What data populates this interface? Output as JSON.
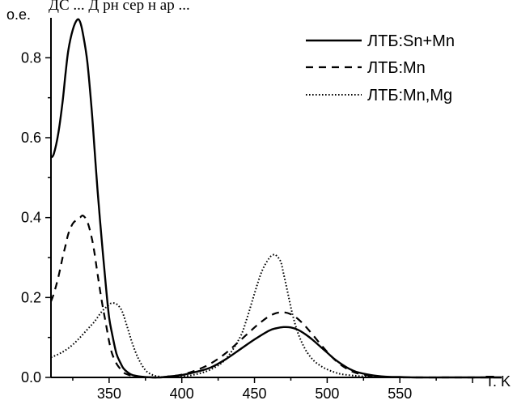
{
  "page": {
    "top_cut_text": "ДС  ... Д  рн  сер  н ар    ..."
  },
  "chart_data": {
    "type": "line",
    "title": "",
    "xlabel": "T. K",
    "ylabel": "о.е.",
    "xlim": [
      310,
      620
    ],
    "ylim": [
      0,
      0.9
    ],
    "grid": false,
    "legend_position": "top-right",
    "x_ticks": [
      350,
      400,
      450,
      500,
      550
    ],
    "x_tick_labels": [
      "350",
      "400",
      "450",
      "500",
      "550"
    ],
    "y_ticks": [
      0.0,
      0.2,
      0.4,
      0.6,
      0.8
    ],
    "y_tick_labels": [
      "0.0",
      "0.2",
      "0.4",
      "0.6",
      "0.8"
    ],
    "series": [
      {
        "name": "ЛТБ:Sn+Mn",
        "style": "solid",
        "x": [
          310,
          312,
          315,
          318,
          320,
          322,
          325,
          328,
          330,
          332,
          335,
          338,
          340,
          342,
          345,
          348,
          350,
          352,
          355,
          358,
          360,
          363,
          366,
          370,
          375,
          380,
          385,
          390,
          400,
          410,
          420,
          430,
          440,
          450,
          460,
          465,
          470,
          475,
          480,
          485,
          490,
          495,
          500,
          505,
          510,
          515,
          520,
          530,
          540,
          550,
          560,
          580,
          600,
          620
        ],
        "y": [
          0.55,
          0.56,
          0.61,
          0.69,
          0.76,
          0.82,
          0.87,
          0.895,
          0.89,
          0.86,
          0.79,
          0.67,
          0.57,
          0.47,
          0.34,
          0.22,
          0.15,
          0.11,
          0.06,
          0.035,
          0.022,
          0.012,
          0.006,
          0.003,
          0.001,
          0.0,
          0.0,
          0.002,
          0.006,
          0.014,
          0.025,
          0.045,
          0.07,
          0.095,
          0.117,
          0.123,
          0.126,
          0.125,
          0.119,
          0.108,
          0.094,
          0.078,
          0.062,
          0.046,
          0.033,
          0.022,
          0.014,
          0.006,
          0.002,
          0.001,
          0.0,
          0.0,
          0.0,
          0.0
        ]
      },
      {
        "name": "ЛТБ:Mn",
        "style": "dashed",
        "x": [
          310,
          312,
          315,
          318,
          320,
          322,
          325,
          328,
          330,
          332,
          335,
          338,
          340,
          342,
          345,
          348,
          350,
          352,
          355,
          358,
          360,
          363,
          366,
          370,
          375,
          380,
          385,
          390,
          400,
          410,
          420,
          430,
          440,
          450,
          455,
          460,
          465,
          470,
          475,
          480,
          485,
          490,
          495,
          500,
          505,
          510,
          515,
          520,
          530,
          540,
          550,
          560,
          580,
          600,
          620
        ],
        "y": [
          0.19,
          0.21,
          0.25,
          0.3,
          0.33,
          0.36,
          0.385,
          0.395,
          0.4,
          0.405,
          0.39,
          0.35,
          0.31,
          0.26,
          0.19,
          0.13,
          0.09,
          0.06,
          0.035,
          0.02,
          0.012,
          0.007,
          0.004,
          0.002,
          0.001,
          0.0,
          0.0,
          0.002,
          0.007,
          0.018,
          0.035,
          0.06,
          0.092,
          0.125,
          0.14,
          0.153,
          0.161,
          0.163,
          0.158,
          0.146,
          0.128,
          0.107,
          0.085,
          0.064,
          0.045,
          0.03,
          0.019,
          0.011,
          0.004,
          0.001,
          0.0,
          0.0,
          0.0,
          0.0,
          0.0
        ]
      },
      {
        "name": "ЛТБ:Mn,Mg",
        "style": "dotted",
        "x": [
          310,
          315,
          320,
          325,
          330,
          335,
          340,
          345,
          350,
          352,
          355,
          358,
          360,
          363,
          366,
          370,
          375,
          380,
          385,
          390,
          400,
          410,
          420,
          430,
          440,
          445,
          450,
          455,
          460,
          463,
          465,
          468,
          470,
          473,
          476,
          480,
          485,
          490,
          495,
          500,
          505,
          510,
          520,
          530,
          540,
          550,
          560,
          580,
          600,
          620
        ],
        "y": [
          0.05,
          0.058,
          0.068,
          0.082,
          0.1,
          0.12,
          0.14,
          0.165,
          0.182,
          0.186,
          0.184,
          0.172,
          0.155,
          0.12,
          0.085,
          0.048,
          0.018,
          0.006,
          0.002,
          0.0,
          0.002,
          0.008,
          0.02,
          0.045,
          0.1,
          0.15,
          0.21,
          0.265,
          0.298,
          0.307,
          0.305,
          0.29,
          0.26,
          0.21,
          0.16,
          0.11,
          0.07,
          0.045,
          0.03,
          0.02,
          0.013,
          0.008,
          0.004,
          0.002,
          0.001,
          0.0,
          0.0,
          0.0,
          0.0,
          0.0
        ]
      }
    ]
  }
}
